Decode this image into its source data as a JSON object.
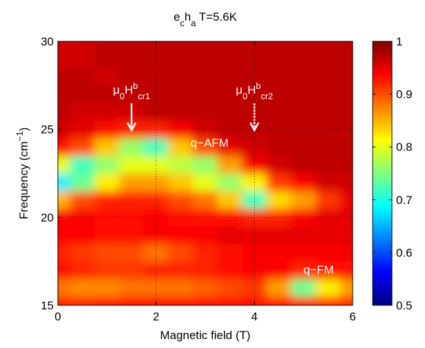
{
  "chart_data": {
    "type": "contourf",
    "title": [
      {
        "text": "e"
      },
      {
        "text": "c",
        "shift": "sub"
      },
      {
        "text": "h"
      },
      {
        "text": "a",
        "shift": "sub"
      },
      {
        "text": " T=5.6K"
      }
    ],
    "x_label": "Magnetic field (T)",
    "y_label": [
      {
        "text": "Frequency (cm"
      },
      {
        "text": "−1",
        "shift": "super"
      },
      {
        "text": ")"
      }
    ],
    "x": [
      0,
      0.5,
      1,
      1.5,
      2,
      2.5,
      3,
      3.5,
      4,
      4.5,
      5,
      5.5,
      6
    ],
    "y": [
      15,
      16,
      17,
      18,
      19,
      20,
      21,
      22,
      23,
      24,
      25,
      26,
      27,
      28,
      29,
      30
    ],
    "z": [
      [
        0.92,
        0.92,
        0.93,
        0.93,
        0.93,
        0.93,
        0.93,
        0.93,
        0.93,
        0.93,
        0.92,
        0.92,
        0.92
      ],
      [
        0.88,
        0.87,
        0.87,
        0.88,
        0.88,
        0.88,
        0.89,
        0.9,
        0.91,
        0.86,
        0.74,
        0.82,
        0.86
      ],
      [
        0.93,
        0.92,
        0.91,
        0.91,
        0.92,
        0.92,
        0.92,
        0.93,
        0.94,
        0.94,
        0.92,
        0.93,
        0.93
      ],
      [
        0.92,
        0.91,
        0.9,
        0.9,
        0.88,
        0.9,
        0.92,
        0.93,
        0.94,
        0.94,
        0.94,
        0.94,
        0.94
      ],
      [
        0.94,
        0.94,
        0.93,
        0.93,
        0.94,
        0.94,
        0.94,
        0.95,
        0.95,
        0.95,
        0.95,
        0.95,
        0.95
      ],
      [
        0.94,
        0.94,
        0.93,
        0.93,
        0.94,
        0.93,
        0.93,
        0.93,
        0.92,
        0.92,
        0.94,
        0.95,
        0.95
      ],
      [
        0.85,
        0.9,
        0.92,
        0.92,
        0.92,
        0.9,
        0.88,
        0.84,
        0.72,
        0.83,
        0.86,
        0.91,
        0.95
      ],
      [
        0.68,
        0.74,
        0.82,
        0.86,
        0.86,
        0.84,
        0.8,
        0.76,
        0.82,
        0.91,
        0.94,
        0.96,
        0.96
      ],
      [
        0.8,
        0.72,
        0.76,
        0.8,
        0.8,
        0.78,
        0.76,
        0.86,
        0.94,
        0.96,
        0.97,
        0.97,
        0.97
      ],
      [
        0.93,
        0.9,
        0.84,
        0.76,
        0.72,
        0.84,
        0.9,
        0.95,
        0.96,
        0.97,
        0.97,
        0.97,
        0.97
      ],
      [
        0.96,
        0.95,
        0.93,
        0.92,
        0.92,
        0.94,
        0.96,
        0.97,
        0.97,
        0.97,
        0.97,
        0.97,
        0.97
      ],
      [
        0.97,
        0.96,
        0.96,
        0.96,
        0.97,
        0.97,
        0.97,
        0.97,
        0.97,
        0.97,
        0.97,
        0.97,
        0.97
      ],
      [
        0.97,
        0.97,
        0.97,
        0.97,
        0.97,
        0.97,
        0.97,
        0.97,
        0.97,
        0.97,
        0.97,
        0.97,
        0.97
      ],
      [
        0.97,
        0.97,
        0.96,
        0.97,
        0.97,
        0.97,
        0.97,
        0.97,
        0.97,
        0.97,
        0.97,
        0.97,
        0.97
      ],
      [
        0.96,
        0.96,
        0.97,
        0.97,
        0.97,
        0.97,
        0.97,
        0.97,
        0.97,
        0.97,
        0.97,
        0.97,
        0.97
      ],
      [
        0.96,
        0.96,
        0.97,
        0.97,
        0.97,
        0.97,
        0.97,
        0.97,
        0.97,
        0.97,
        0.97,
        0.97,
        0.97
      ]
    ],
    "colormap": "jet",
    "clim": [
      0.5,
      1
    ],
    "cticks": [
      0.5,
      0.6,
      0.7,
      0.8,
      0.9,
      1
    ],
    "xlim": [
      0,
      6
    ],
    "xticks": [
      0,
      2,
      4,
      6
    ],
    "ylim": [
      15,
      30
    ],
    "yticks": [
      15,
      20,
      25,
      30
    ],
    "grid": true,
    "annotations": [
      {
        "x": 1.5,
        "text": [
          {
            "text": "μ"
          },
          {
            "text": "0",
            "shift": "sub"
          },
          {
            "text": "H"
          },
          {
            "text": "b",
            "shift": "super"
          },
          {
            "text": "cr1",
            "shift": "sub"
          }
        ]
      },
      {
        "x": 4,
        "text": [
          {
            "text": "μ"
          },
          {
            "text": "0",
            "shift": "sub"
          },
          {
            "text": "H"
          },
          {
            "text": "b",
            "shift": "super"
          },
          {
            "text": "cr2",
            "shift": "sub"
          }
        ]
      }
    ],
    "labels": [
      {
        "text": "q−AFM",
        "x": 2.7,
        "y": 24
      },
      {
        "text": "q−FM",
        "x": 5,
        "y": 16.8
      }
    ]
  }
}
